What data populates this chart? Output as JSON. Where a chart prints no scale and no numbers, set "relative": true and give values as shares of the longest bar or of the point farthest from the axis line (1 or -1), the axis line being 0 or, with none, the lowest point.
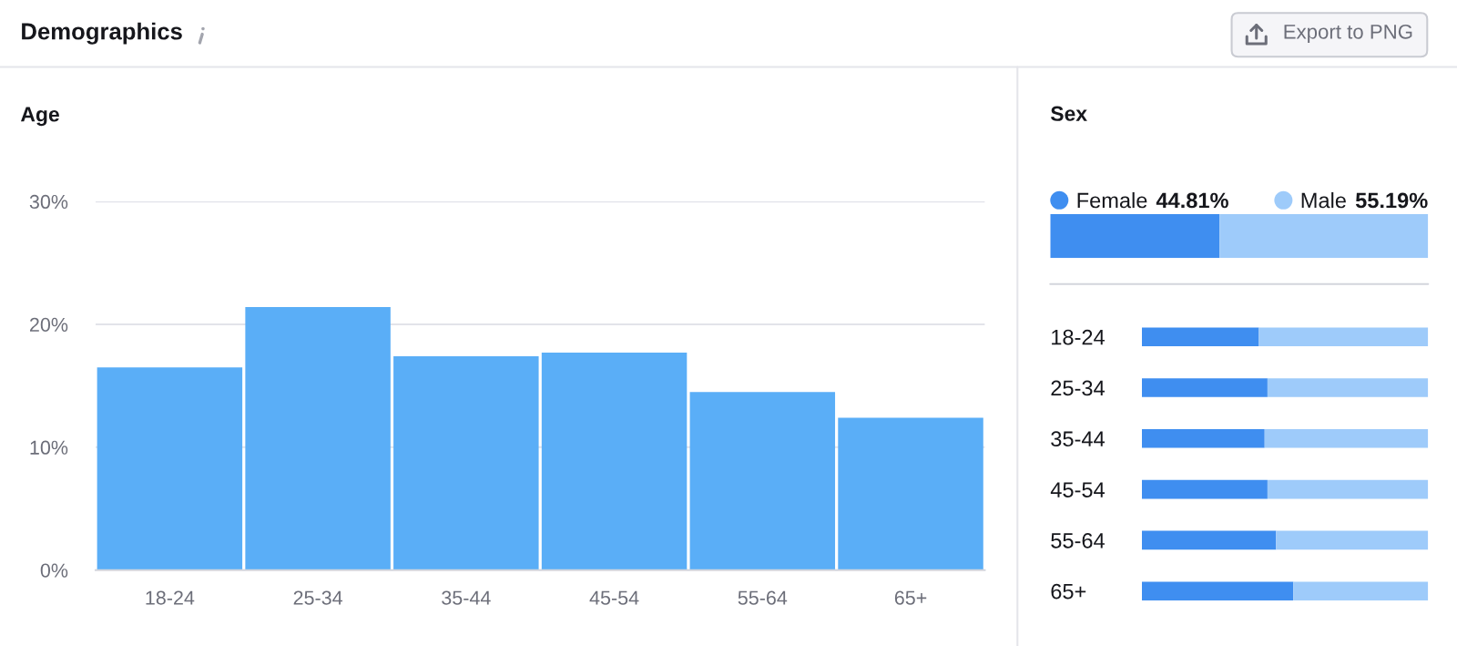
{
  "chart_data": [
    {
      "type": "other",
      "title": "Demographics",
      "annotations": [
        "Export to PNG"
      ]
    },
    {
      "type": "bar",
      "title": "Age",
      "categories": [
        "18-24",
        "25-34",
        "35-44",
        "45-54",
        "55-64",
        "65+"
      ],
      "values": [
        16.5,
        21.4,
        17.4,
        17.7,
        14.5,
        12.4
      ],
      "color": "#5aaef7",
      "ylim": [
        0,
        30
      ],
      "yticks": [
        {
          "value": 0,
          "label": "0%"
        },
        {
          "value": 10,
          "label": "10%"
        },
        {
          "value": 20,
          "label": "20%"
        },
        {
          "value": 30,
          "label": "30%"
        }
      ],
      "grid": "y"
    },
    {
      "type": "bar",
      "title": "Sex",
      "orientation": "horizontal",
      "stacked": true,
      "categories": [
        null
      ],
      "series": [
        {
          "name": "Female",
          "color": "#3f8ef0",
          "values": [
            44.81
          ],
          "value_labels": [
            "44.81%"
          ]
        },
        {
          "name": "Male",
          "color": "#9ecbfa",
          "values": [
            55.19
          ],
          "value_labels": [
            "55.19%"
          ]
        }
      ],
      "tick_labels": false,
      "legend": "top"
    },
    {
      "type": "bar",
      "orientation": "horizontal",
      "stacked": true,
      "relative": true,
      "categories": [
        "18-24",
        "25-34",
        "35-44",
        "45-54",
        "55-64",
        "65+"
      ],
      "series": [
        {
          "color": "#3f8ef0",
          "values": [
            0.41,
            0.44,
            0.43,
            0.44,
            0.47,
            0.53
          ]
        },
        {
          "color": "#9ecbfa",
          "values": [
            0.59,
            0.56,
            0.57,
            0.56,
            0.53,
            0.47
          ]
        }
      ]
    }
  ]
}
